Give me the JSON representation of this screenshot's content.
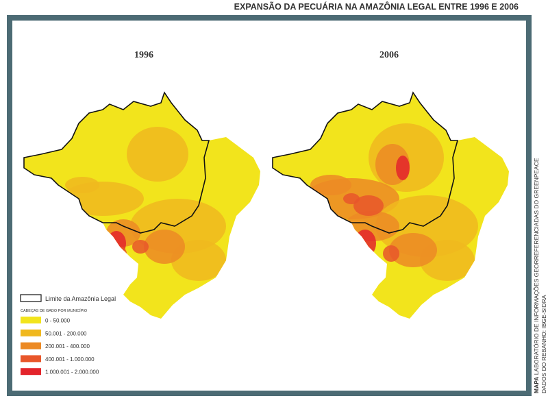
{
  "header": {
    "title": "EXPANSÃO DA PECUÁRIA NA AMAZÔNIA LEGAL ENTRE 1996 E 2006"
  },
  "maps": [
    {
      "year": "1996"
    },
    {
      "year": "2006"
    }
  ],
  "legend": {
    "boundary": "Limite da Amazônia Legal",
    "heading": "CABEÇAS DE GADO POR MUNICÍPIO",
    "classes": [
      {
        "label": "0 - 50.000",
        "color": "#f2e41c"
      },
      {
        "label": "50.001 - 200.000",
        "color": "#f0b81e"
      },
      {
        "label": "200.001 - 400.000",
        "color": "#ec8a24"
      },
      {
        "label": "400.001 - 1.000.000",
        "color": "#e8562a"
      },
      {
        "label": "1.000.001 - 2.000.000",
        "color": "#e3242b"
      }
    ]
  },
  "credits": {
    "label": "MAPA",
    "text": "LABORATÓRIO DE INFORMAÇÕES GEORREFERENCIADAS DO GREENPEACE",
    "source": "DADOS DO REBANHO: IBGE-SIDRA"
  }
}
